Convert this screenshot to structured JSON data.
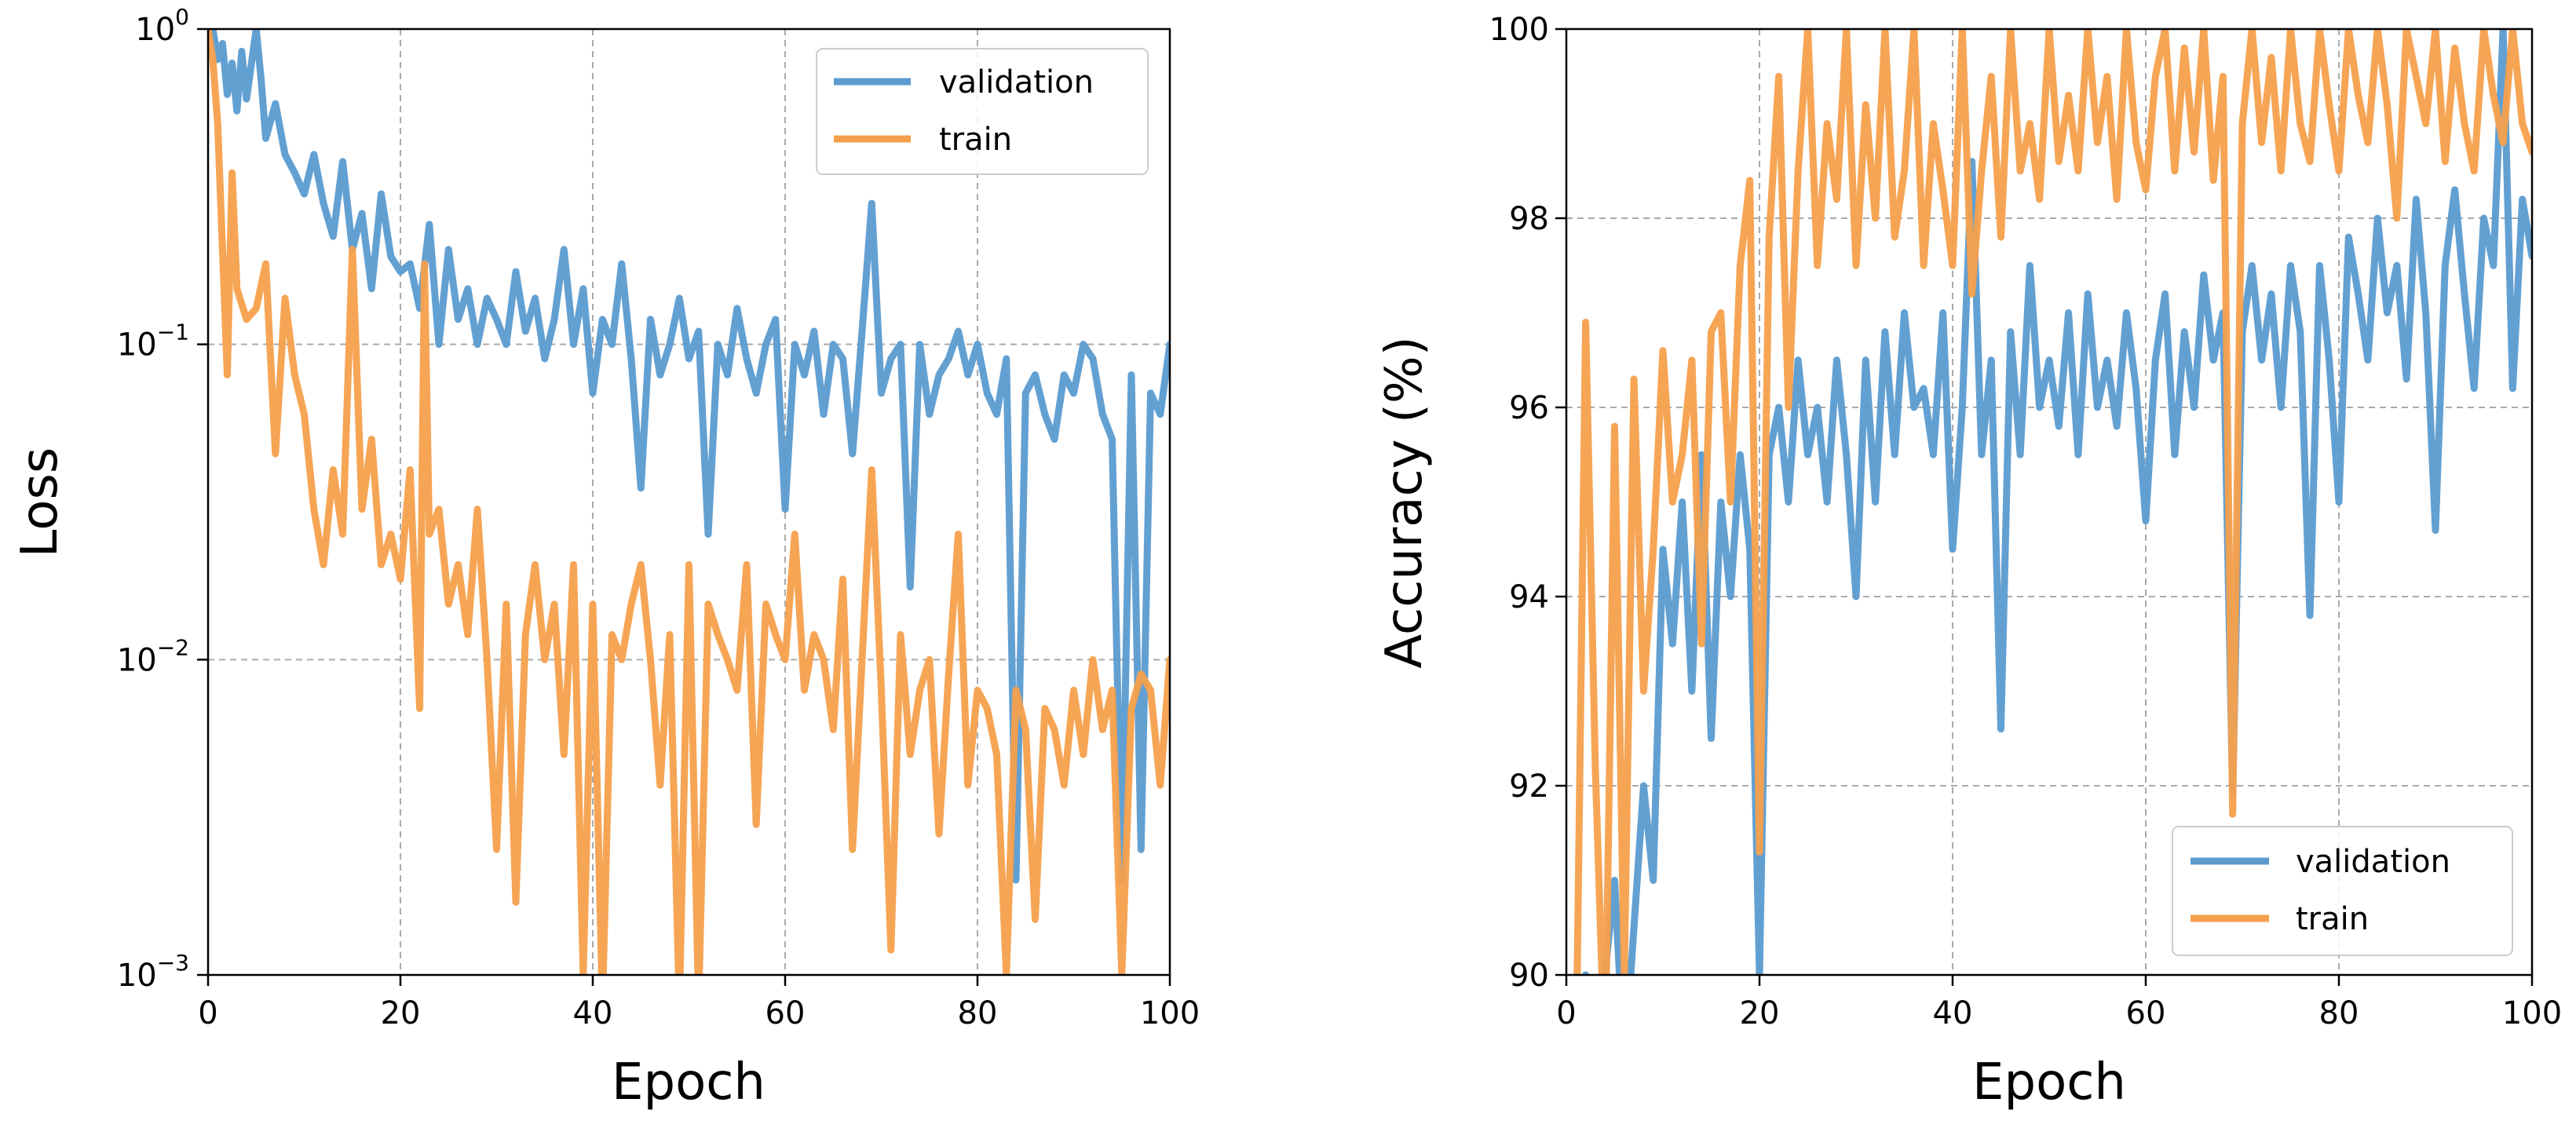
{
  "chart_data": [
    {
      "type": "line",
      "yscale": "log",
      "title": "",
      "xlabel": "Epoch",
      "ylabel": "Loss",
      "xlim": [
        0,
        100
      ],
      "ylim": [
        0.001,
        1
      ],
      "xticks": [
        0,
        20,
        40,
        60,
        80,
        100
      ],
      "xtick_labels": [
        "0",
        "20",
        "40",
        "60",
        "80",
        "100"
      ],
      "yticks": [
        0.001,
        0.01,
        0.1,
        1
      ],
      "ytick_labels": [
        {
          "base": "10",
          "exp": "−3"
        },
        {
          "base": "10",
          "exp": "−2"
        },
        {
          "base": "10",
          "exp": "−1"
        },
        {
          "base": "10",
          "exp": "0"
        }
      ],
      "grid": true,
      "legend": "top-right",
      "series": [
        {
          "name": "validation",
          "color": "#5b9bd0",
          "x": [
            0,
            0.5,
            1,
            1.5,
            2,
            2.5,
            3,
            3.5,
            4,
            5,
            5.5,
            6,
            7,
            8,
            9,
            10,
            11,
            12,
            13,
            14,
            15,
            16,
            17,
            18,
            19,
            20,
            21,
            22,
            23,
            24,
            25,
            26,
            27,
            28,
            29,
            30,
            31,
            32,
            33,
            34,
            35,
            36,
            37,
            38,
            39,
            40,
            41,
            42,
            43,
            44,
            45,
            46,
            47,
            48,
            49,
            50,
            51,
            52,
            53,
            54,
            55,
            56,
            57,
            58,
            59,
            60,
            61,
            62,
            63,
            64,
            65,
            66,
            67,
            68,
            69,
            70,
            71,
            72,
            73,
            74,
            75,
            76,
            77,
            78,
            79,
            80,
            81,
            82,
            83,
            84,
            85,
            86,
            87,
            88,
            89,
            90,
            91,
            92,
            93,
            94,
            95,
            96,
            97,
            98,
            99,
            100
          ],
          "y": [
            1.0,
            1.0,
            0.8,
            0.9,
            0.62,
            0.78,
            0.55,
            0.85,
            0.6,
            1.0,
            0.7,
            0.45,
            0.58,
            0.4,
            0.35,
            0.3,
            0.4,
            0.28,
            0.22,
            0.38,
            0.2,
            0.26,
            0.15,
            0.3,
            0.19,
            0.17,
            0.18,
            0.13,
            0.24,
            0.1,
            0.2,
            0.12,
            0.15,
            0.1,
            0.14,
            0.12,
            0.1,
            0.17,
            0.11,
            0.14,
            0.09,
            0.12,
            0.2,
            0.1,
            0.15,
            0.07,
            0.12,
            0.1,
            0.18,
            0.09,
            0.035,
            0.12,
            0.08,
            0.1,
            0.14,
            0.09,
            0.11,
            0.025,
            0.1,
            0.08,
            0.13,
            0.09,
            0.07,
            0.1,
            0.12,
            0.03,
            0.1,
            0.08,
            0.11,
            0.06,
            0.1,
            0.09,
            0.045,
            0.11,
            0.28,
            0.07,
            0.09,
            0.1,
            0.017,
            0.1,
            0.06,
            0.08,
            0.09,
            0.11,
            0.08,
            0.1,
            0.07,
            0.06,
            0.09,
            0.002,
            0.07,
            0.08,
            0.06,
            0.05,
            0.08,
            0.07,
            0.1,
            0.09,
            0.06,
            0.05,
            0.002,
            0.08,
            0.0025,
            0.07,
            0.06,
            0.1
          ]
        },
        {
          "name": "train",
          "color": "#f5a04c",
          "x": [
            0,
            0.5,
            1,
            1.5,
            2,
            2.5,
            3,
            4,
            5,
            6,
            7,
            8,
            9,
            10,
            11,
            12,
            13,
            14,
            15,
            16,
            17,
            18,
            19,
            20,
            21,
            22,
            22.5,
            23,
            24,
            25,
            26,
            27,
            28,
            29,
            30,
            31,
            32,
            33,
            34,
            35,
            36,
            37,
            38,
            39,
            40,
            41,
            42,
            43,
            44,
            45,
            46,
            47,
            48,
            49,
            50,
            51,
            52,
            53,
            54,
            55,
            56,
            57,
            58,
            59,
            60,
            61,
            62,
            63,
            64,
            65,
            66,
            67,
            68,
            69,
            70,
            71,
            72,
            73,
            74,
            75,
            76,
            77,
            78,
            79,
            80,
            81,
            82,
            83,
            84,
            85,
            86,
            87,
            88,
            89,
            90,
            91,
            92,
            93,
            94,
            95,
            96,
            97,
            98,
            99,
            100
          ],
          "y": [
            1.0,
            0.8,
            0.5,
            0.2,
            0.08,
            0.35,
            0.15,
            0.12,
            0.13,
            0.18,
            0.045,
            0.14,
            0.08,
            0.06,
            0.03,
            0.02,
            0.04,
            0.025,
            0.2,
            0.03,
            0.05,
            0.02,
            0.025,
            0.018,
            0.04,
            0.007,
            0.18,
            0.025,
            0.03,
            0.015,
            0.02,
            0.012,
            0.03,
            0.01,
            0.0025,
            0.015,
            0.0017,
            0.012,
            0.02,
            0.01,
            0.015,
            0.005,
            0.02,
            0.001,
            0.015,
            0.0008,
            0.012,
            0.01,
            0.015,
            0.02,
            0.01,
            0.004,
            0.012,
            0.0008,
            0.02,
            0.0008,
            0.015,
            0.012,
            0.01,
            0.008,
            0.02,
            0.003,
            0.015,
            0.012,
            0.01,
            0.025,
            0.008,
            0.012,
            0.01,
            0.006,
            0.018,
            0.0025,
            0.01,
            0.04,
            0.008,
            0.0012,
            0.012,
            0.005,
            0.008,
            0.01,
            0.0028,
            0.009,
            0.025,
            0.004,
            0.008,
            0.007,
            0.005,
            0.001,
            0.008,
            0.006,
            0.0015,
            0.007,
            0.006,
            0.004,
            0.008,
            0.005,
            0.01,
            0.006,
            0.008,
            0.001,
            0.007,
            0.009,
            0.008,
            0.004,
            0.01
          ]
        }
      ]
    },
    {
      "type": "line",
      "yscale": "linear",
      "title": "",
      "xlabel": "Epoch",
      "ylabel": "Accuracy (%)",
      "xlim": [
        0,
        100
      ],
      "ylim": [
        90,
        100
      ],
      "xticks": [
        0,
        20,
        40,
        60,
        80,
        100
      ],
      "xtick_labels": [
        "0",
        "20",
        "40",
        "60",
        "80",
        "100"
      ],
      "yticks": [
        90,
        92,
        94,
        96,
        98,
        100
      ],
      "ytick_labels": [
        "90",
        "92",
        "94",
        "96",
        "98",
        "100"
      ],
      "grid": true,
      "legend": "bottom-right",
      "series": [
        {
          "name": "validation",
          "color": "#5b9bd0",
          "x": [
            0,
            1,
            2,
            3,
            4,
            5,
            6,
            7,
            8,
            9,
            10,
            11,
            12,
            13,
            14,
            15,
            16,
            17,
            18,
            19,
            20,
            21,
            22,
            23,
            24,
            25,
            26,
            27,
            28,
            29,
            30,
            31,
            32,
            33,
            34,
            35,
            36,
            37,
            38,
            39,
            40,
            41,
            42,
            43,
            44,
            45,
            46,
            47,
            48,
            49,
            50,
            51,
            52,
            53,
            54,
            55,
            56,
            57,
            58,
            59,
            60,
            61,
            62,
            63,
            64,
            65,
            66,
            67,
            68,
            69,
            70,
            71,
            72,
            73,
            74,
            75,
            76,
            77,
            78,
            79,
            80,
            81,
            82,
            83,
            84,
            85,
            86,
            87,
            88,
            89,
            90,
            91,
            92,
            93,
            94,
            95,
            96,
            97,
            98,
            99,
            100
          ],
          "y": [
            88,
            89,
            90,
            88.5,
            90,
            91,
            89,
            90.5,
            92,
            91,
            94.5,
            93.5,
            95,
            93,
            95.5,
            92.5,
            95,
            94,
            95.5,
            94.5,
            90,
            95.5,
            96,
            95,
            96.5,
            95.5,
            96,
            95,
            96.5,
            95.5,
            94,
            96.5,
            95,
            96.8,
            95.5,
            97,
            96,
            96.2,
            95.5,
            97,
            94.5,
            96,
            98.6,
            95.5,
            96.5,
            92.6,
            96.8,
            95.5,
            97.5,
            96,
            96.5,
            95.8,
            97,
            95.5,
            97.2,
            96,
            96.5,
            95.8,
            97,
            96.2,
            94.8,
            96.5,
            97.2,
            95.5,
            96.8,
            96,
            97.4,
            96.5,
            97,
            91.9,
            96.8,
            97.5,
            96.5,
            97.2,
            96,
            97.5,
            96.8,
            93.8,
            97.5,
            96.5,
            95,
            97.8,
            97.2,
            96.5,
            98,
            97,
            97.5,
            96.3,
            98.2,
            97,
            94.7,
            97.5,
            98.3,
            97.2,
            96.2,
            98,
            97.5,
            100,
            96.2,
            98.2,
            97.6
          ]
        },
        {
          "name": "train",
          "color": "#f5a04c",
          "x": [
            0,
            1,
            2,
            3,
            4,
            5,
            6,
            7,
            8,
            9,
            10,
            11,
            12,
            13,
            14,
            15,
            16,
            17,
            18,
            19,
            20,
            21,
            22,
            23,
            24,
            25,
            26,
            27,
            28,
            29,
            30,
            31,
            32,
            33,
            34,
            35,
            36,
            37,
            38,
            39,
            40,
            41,
            42,
            43,
            44,
            45,
            46,
            47,
            48,
            49,
            50,
            51,
            52,
            53,
            54,
            55,
            56,
            57,
            58,
            59,
            60,
            61,
            62,
            63,
            64,
            65,
            66,
            67,
            68,
            69,
            70,
            71,
            72,
            73,
            74,
            75,
            76,
            77,
            78,
            79,
            80,
            81,
            82,
            83,
            84,
            85,
            86,
            87,
            88,
            89,
            90,
            91,
            92,
            93,
            94,
            95,
            96,
            97,
            98,
            99,
            100
          ],
          "y": [
            88,
            89,
            96.9,
            92.2,
            89,
            95.8,
            90,
            96.3,
            93,
            94.5,
            96.6,
            95,
            95.5,
            96.5,
            93.5,
            96.8,
            97,
            95,
            97.5,
            98.4,
            91.3,
            97.8,
            99.5,
            96,
            98.5,
            100,
            97.5,
            99,
            98.2,
            100,
            97.5,
            99.2,
            98,
            100,
            97.8,
            98.5,
            100,
            97.5,
            99,
            98.3,
            97.5,
            100,
            97.2,
            98.5,
            99.5,
            97.8,
            100,
            98.5,
            99,
            98.2,
            100,
            98.6,
            99.3,
            98.5,
            100,
            98.8,
            99.5,
            98.2,
            100,
            98.8,
            98.3,
            99.5,
            100,
            98.5,
            99.8,
            98.7,
            100,
            98.4,
            99.5,
            91.7,
            99,
            100,
            98.8,
            99.7,
            98.5,
            100,
            99,
            98.6,
            100,
            99.2,
            98.5,
            100,
            99.3,
            98.8,
            100,
            99.2,
            98,
            100,
            99.5,
            99,
            100,
            98.6,
            99.8,
            99,
            98.5,
            100,
            99.3,
            98.8,
            100,
            99,
            98.7
          ]
        }
      ]
    }
  ]
}
